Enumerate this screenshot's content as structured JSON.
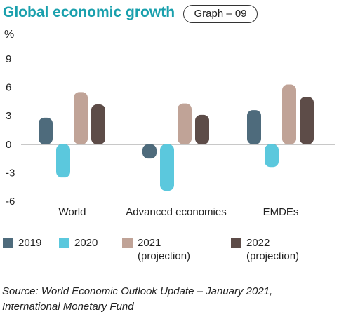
{
  "header": {
    "title": "Global economic growth",
    "badge": "Graph – 09"
  },
  "colors": {
    "title": "#1aa0ad",
    "s2019": "#4e6b7c",
    "s2020": "#5bc8dd",
    "s2021": "#c0a397",
    "s2022": "#5d4c48"
  },
  "chart_data": {
    "type": "bar",
    "ylabel": "%",
    "ylim": [
      -6,
      9
    ],
    "yticks": [
      "9",
      "6",
      "3",
      "0",
      "-3",
      "-6"
    ],
    "categories": [
      "World",
      "Advanced economies",
      "EMDEs"
    ],
    "series": [
      {
        "name": "2019",
        "values": [
          2.8,
          -1.5,
          3.6
        ],
        "color": "#4e6b7c"
      },
      {
        "name": "2020",
        "values": [
          -3.5,
          -4.9,
          -2.4
        ],
        "color": "#5bc8dd"
      },
      {
        "name": "2021\n(projection)",
        "values": [
          5.5,
          4.3,
          6.3
        ],
        "color": "#c0a397"
      },
      {
        "name": "2022\n(projection)",
        "values": [
          4.2,
          3.1,
          5.0
        ],
        "color": "#5d4c48"
      }
    ]
  },
  "legend": [
    {
      "line1": "2019",
      "line2": ""
    },
    {
      "line1": "2020",
      "line2": ""
    },
    {
      "line1": "2021",
      "line2": "(projection)"
    },
    {
      "line1": "2022",
      "line2": "(projection)"
    }
  ],
  "source": {
    "line1": "Source: World Economic Outlook Update – January 2021,",
    "line2": "International Monetary Fund"
  }
}
